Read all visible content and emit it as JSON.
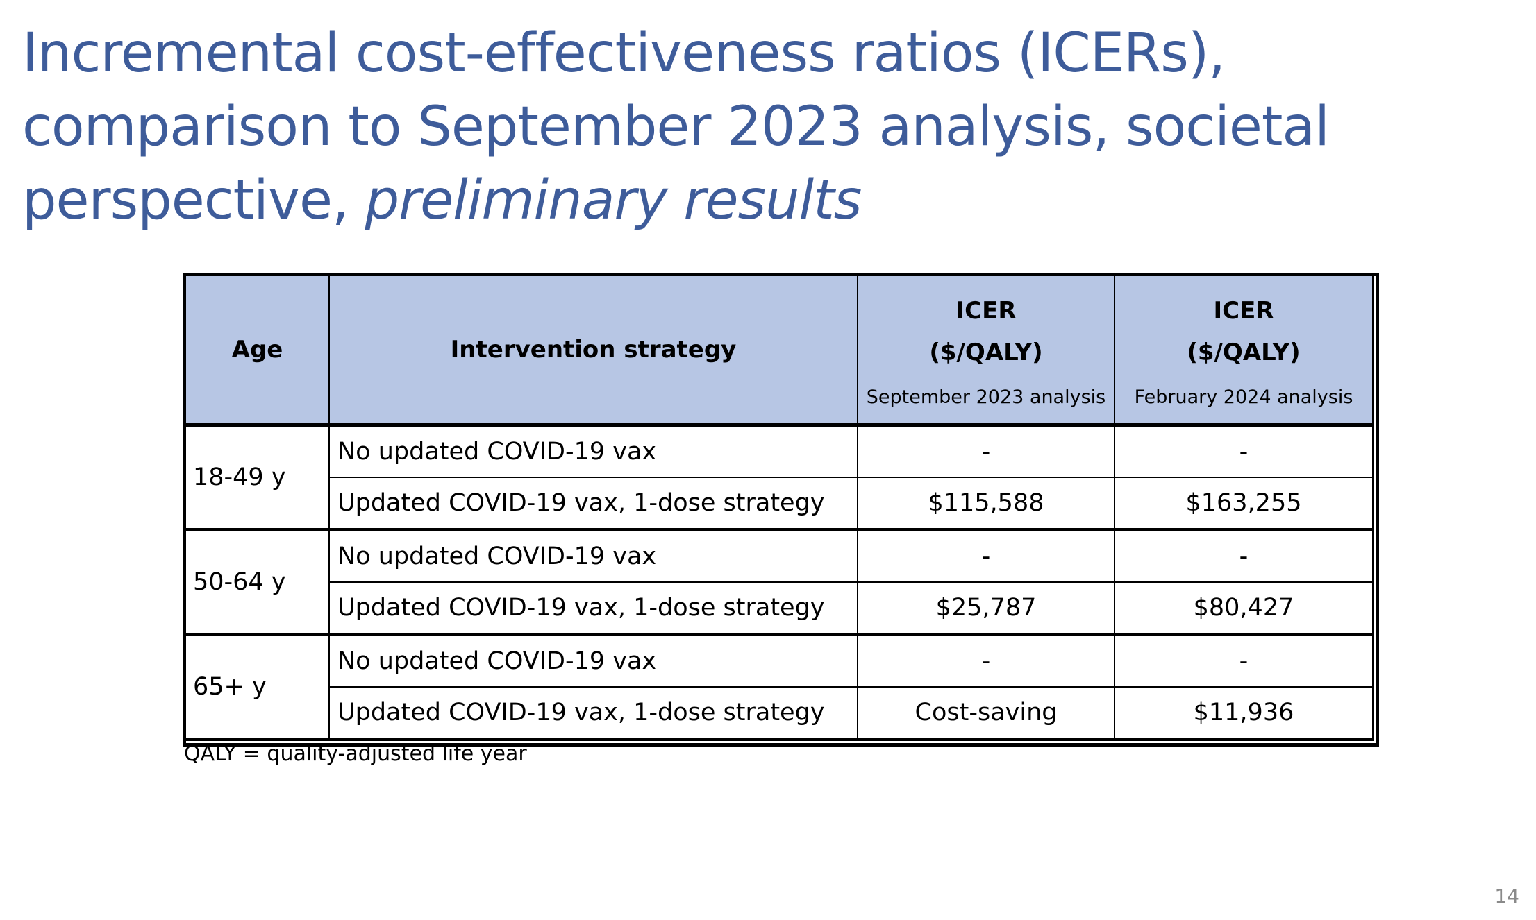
{
  "title": {
    "line1": "Incremental cost-effectiveness ratios (ICERs),",
    "line2": "comparison to September 2023 analysis, societal",
    "line3_normal": "perspective, ",
    "line3_italic": "preliminary results"
  },
  "table": {
    "headers": {
      "age": "Age",
      "strategy": "Intervention strategy",
      "icer_sep_line1": "ICER",
      "icer_sep_line2": "($/QALY)",
      "icer_sep_sub": "September 2023 analysis",
      "icer_feb_line1": "ICER",
      "icer_feb_line2": "($/QALY)",
      "icer_feb_sub": "February 2024 analysis"
    },
    "groups": [
      {
        "age": "18-49 y",
        "rows": [
          {
            "strategy": "No updated COVID-19 vax",
            "sep_2023": "-",
            "feb_2024": "-"
          },
          {
            "strategy": "Updated COVID-19 vax, 1-dose strategy",
            "sep_2023": "$115,588",
            "feb_2024": "$163,255"
          }
        ]
      },
      {
        "age": "50-64 y",
        "rows": [
          {
            "strategy": "No updated COVID-19 vax",
            "sep_2023": "-",
            "feb_2024": "-"
          },
          {
            "strategy": "Updated COVID-19 vax, 1-dose strategy",
            "sep_2023": "$25,787",
            "feb_2024": "$80,427"
          }
        ]
      },
      {
        "age": "65+ y",
        "rows": [
          {
            "strategy": "No updated COVID-19 vax",
            "sep_2023": "-",
            "feb_2024": "-"
          },
          {
            "strategy": "Updated COVID-19 vax, 1-dose strategy",
            "sep_2023": "Cost-saving",
            "feb_2024": "$11,936"
          }
        ]
      }
    ]
  },
  "footnote": "QALY = quality-adjusted life year",
  "page_number": "14",
  "colors": {
    "title": "#3e5c9a",
    "header_fill": "#b7c6e4",
    "page_number": "#8a8a8a"
  }
}
